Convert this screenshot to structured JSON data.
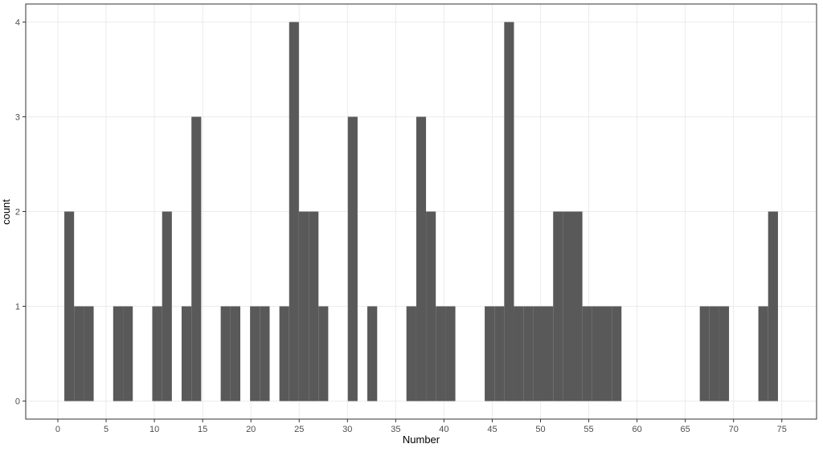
{
  "chart_data": {
    "type": "histogram",
    "x_label": "Number",
    "y_label": "count",
    "bins": [
      0.67,
      1.68,
      2.7,
      3.71,
      4.72,
      5.73,
      6.75,
      7.76,
      8.77,
      9.78,
      10.8,
      11.81,
      12.82,
      13.84,
      14.85,
      15.86,
      16.87,
      17.89,
      18.9,
      19.91,
      20.92,
      21.94,
      22.95,
      23.96,
      24.97,
      25.99,
      27.0,
      28.01,
      29.03,
      30.04,
      31.05,
      32.06,
      33.08,
      34.09,
      35.1,
      36.11,
      37.13,
      38.14,
      39.15,
      40.17,
      41.18,
      42.19,
      43.2,
      44.22,
      45.23,
      46.24,
      47.25,
      48.27,
      49.28,
      50.29,
      51.31,
      52.32,
      53.33,
      54.34,
      55.36,
      56.37,
      57.38,
      58.39,
      59.41,
      60.42,
      61.43,
      62.44,
      63.46,
      64.47,
      65.48,
      66.5,
      67.51,
      68.52,
      69.53,
      70.55,
      71.56,
      72.57,
      73.58,
      74.6
    ],
    "counts": [
      2,
      1,
      1,
      0,
      0,
      1,
      1,
      0,
      0,
      1,
      2,
      0,
      1,
      3,
      0,
      0,
      1,
      1,
      0,
      1,
      1,
      0,
      1,
      4,
      2,
      2,
      1,
      0,
      0,
      3,
      0,
      1,
      0,
      0,
      0,
      1,
      3,
      2,
      1,
      1,
      0,
      0,
      0,
      1,
      1,
      4,
      1,
      1,
      1,
      1,
      2,
      2,
      2,
      1,
      1,
      1,
      1,
      0,
      0,
      0,
      0,
      0,
      0,
      0,
      0,
      1,
      1,
      1,
      0,
      0,
      0,
      1,
      2
    ],
    "color": "#595959",
    "xlim": [
      -3.33,
      78.6
    ],
    "ylim": [
      -0.19,
      4.19
    ],
    "xticks": [
      0,
      5,
      10,
      15,
      20,
      25,
      30,
      35,
      40,
      45,
      50,
      55,
      60,
      65,
      70,
      75
    ],
    "yticks": [
      0,
      1,
      2,
      3,
      4
    ],
    "grid": true
  }
}
